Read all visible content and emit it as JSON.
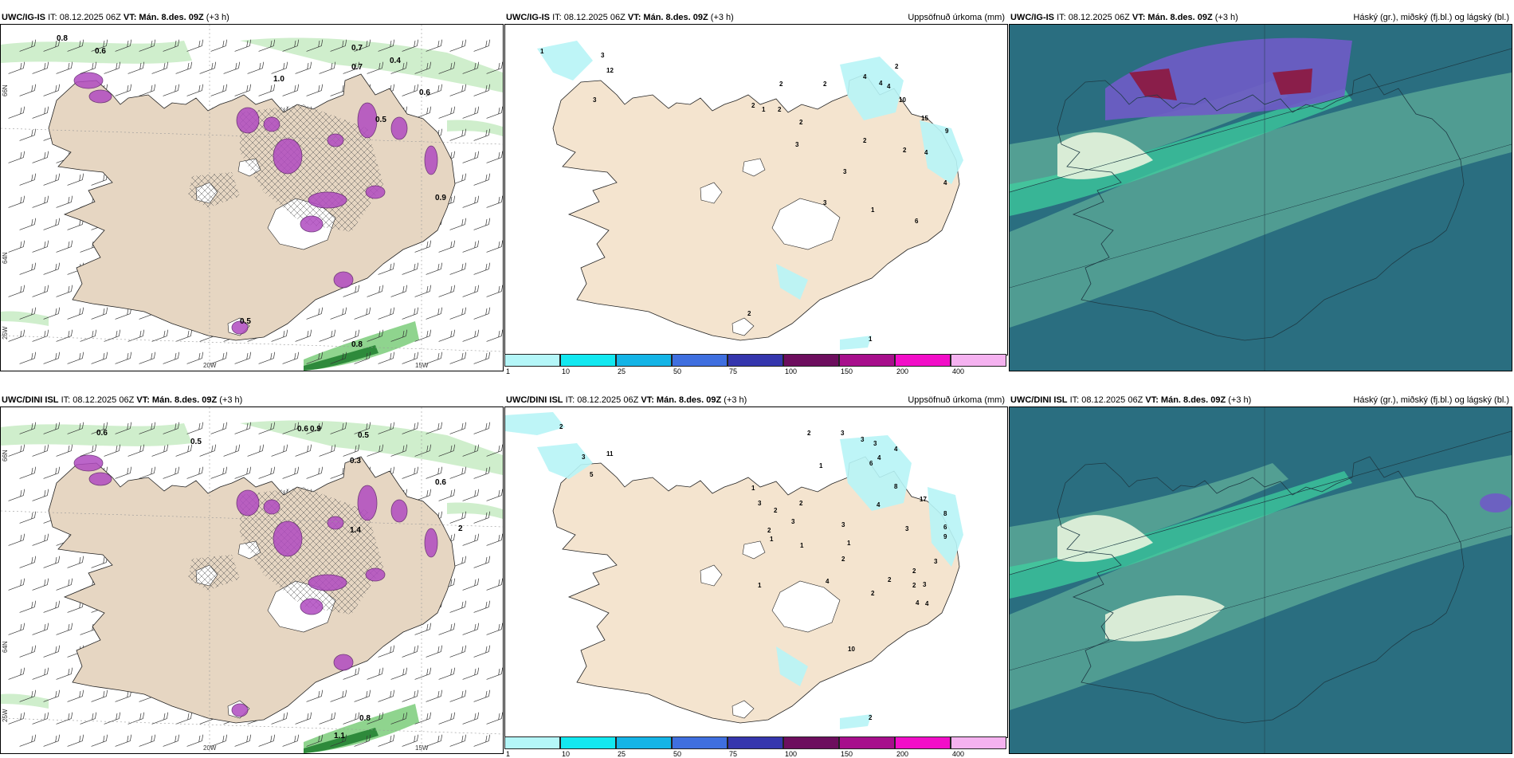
{
  "colors": {
    "land": "#f4e4cf",
    "land_panel1": "#e6d6c2",
    "sea": "#ffffff",
    "precip_light": "#b7f4f6",
    "purple": "#b04bc0",
    "green_light": "#cfeecc",
    "green_mid": "#8fd48e",
    "green_dark": "#2e8a3b",
    "cloud_bg": "#2a6e80",
    "cloud_mid": "#5aa896",
    "cloud_low": "#3fd3a0",
    "cloud_high": "#6f5bc7",
    "cloud_crimson": "#8a1e4a"
  },
  "rows": [
    {
      "model": "UWC/IG-IS",
      "init": "IT: 08.12.2025 06Z",
      "valid": "VT: Mán. 8.des. 09Z",
      "lead": "(+3 h)",
      "wind_labels": [
        {
          "text": "0.8",
          "x": 70,
          "y": 50
        },
        {
          "text": "0.6",
          "x": 118,
          "y": 66
        },
        {
          "text": "0.7",
          "x": 440,
          "y": 62
        },
        {
          "text": "0.4",
          "x": 488,
          "y": 78
        },
        {
          "text": "0.7",
          "x": 440,
          "y": 86
        },
        {
          "text": "0.6",
          "x": 525,
          "y": 118
        },
        {
          "text": "0.5",
          "x": 470,
          "y": 152
        },
        {
          "text": "0.9",
          "x": 545,
          "y": 250
        },
        {
          "text": "0.8",
          "x": 440,
          "y": 434
        },
        {
          "text": "1.0",
          "x": 342,
          "y": 101
        },
        {
          "text": "0.5",
          "x": 300,
          "y": 405
        }
      ],
      "lon_labels": [
        {
          "text": "20W",
          "x": 262
        },
        {
          "text": "15W",
          "x": 528
        }
      ],
      "lat_labels": [
        {
          "text": "66N",
          "y": 120
        },
        {
          "text": "64N",
          "y": 330
        },
        {
          "text": "25W",
          "y": 425
        }
      ],
      "precip_title": "Uppsöfnuð úrkoma (mm)",
      "precip_labels": [
        {
          "text": "1",
          "x": 680,
          "y": 63
        },
        {
          "text": "3",
          "x": 756,
          "y": 68
        },
        {
          "text": "12",
          "x": 763,
          "y": 87
        },
        {
          "text": "3",
          "x": 746,
          "y": 124
        },
        {
          "text": "2",
          "x": 945,
          "y": 131
        },
        {
          "text": "1",
          "x": 958,
          "y": 136
        },
        {
          "text": "2",
          "x": 978,
          "y": 136
        },
        {
          "text": "2",
          "x": 980,
          "y": 104
        },
        {
          "text": "2",
          "x": 1035,
          "y": 104
        },
        {
          "text": "2",
          "x": 1005,
          "y": 152
        },
        {
          "text": "2",
          "x": 1085,
          "y": 175
        },
        {
          "text": "3",
          "x": 1000,
          "y": 180
        },
        {
          "text": "3",
          "x": 1060,
          "y": 214
        },
        {
          "text": "4",
          "x": 1085,
          "y": 95
        },
        {
          "text": "4",
          "x": 1105,
          "y": 103
        },
        {
          "text": "4",
          "x": 1115,
          "y": 107
        },
        {
          "text": "2",
          "x": 1125,
          "y": 82
        },
        {
          "text": "10",
          "x": 1130,
          "y": 124
        },
        {
          "text": "15",
          "x": 1158,
          "y": 147
        },
        {
          "text": "2",
          "x": 1135,
          "y": 187
        },
        {
          "text": "9",
          "x": 1188,
          "y": 163
        },
        {
          "text": "4",
          "x": 1162,
          "y": 190
        },
        {
          "text": "1",
          "x": 1095,
          "y": 262
        },
        {
          "text": "6",
          "x": 1150,
          "y": 276
        },
        {
          "text": "4",
          "x": 1186,
          "y": 228
        },
        {
          "text": "3",
          "x": 1035,
          "y": 253
        },
        {
          "text": "1",
          "x": 1092,
          "y": 424
        },
        {
          "text": "2",
          "x": 940,
          "y": 392
        }
      ],
      "cloud_title": "Háský (gr.), miðský (fj.bl.) og lágský (bl.)"
    },
    {
      "model": "UWC/DINI ISL",
      "init": "IT: 08.12.2025 06Z",
      "valid": "VT: Mán. 8.des. 09Z",
      "lead": "(+3 h)",
      "wind_labels": [
        {
          "text": "0.6",
          "x": 120,
          "y": 545
        },
        {
          "text": "0.5",
          "x": 238,
          "y": 556
        },
        {
          "text": "0.6",
          "x": 372,
          "y": 540
        },
        {
          "text": "0.9",
          "x": 388,
          "y": 540
        },
        {
          "text": "0.5",
          "x": 448,
          "y": 548
        },
        {
          "text": "0.3",
          "x": 438,
          "y": 580
        },
        {
          "text": "0.6",
          "x": 545,
          "y": 607
        },
        {
          "text": "0.8",
          "x": 450,
          "y": 903
        },
        {
          "text": "1.1",
          "x": 418,
          "y": 925
        },
        {
          "text": "1.4",
          "x": 438,
          "y": 667
        },
        {
          "text": "2",
          "x": 574,
          "y": 665
        }
      ],
      "lon_labels": [
        {
          "text": "20W",
          "x": 262
        },
        {
          "text": "15W",
          "x": 528
        }
      ],
      "lat_labels": [
        {
          "text": "66N",
          "y": 578
        },
        {
          "text": "64N",
          "y": 818
        },
        {
          "text": "25W",
          "y": 905
        }
      ],
      "precip_title": "Uppsöfnuð úrkoma (mm)",
      "precip_labels": [
        {
          "text": "2",
          "x": 704,
          "y": 534
        },
        {
          "text": "3",
          "x": 732,
          "y": 572
        },
        {
          "text": "11",
          "x": 763,
          "y": 568
        },
        {
          "text": "5",
          "x": 742,
          "y": 594
        },
        {
          "text": "2",
          "x": 1015,
          "y": 542
        },
        {
          "text": "3",
          "x": 1057,
          "y": 542
        },
        {
          "text": "1",
          "x": 1030,
          "y": 583
        },
        {
          "text": "3",
          "x": 1082,
          "y": 550
        },
        {
          "text": "1",
          "x": 945,
          "y": 611
        },
        {
          "text": "3",
          "x": 953,
          "y": 630
        },
        {
          "text": "2",
          "x": 973,
          "y": 639
        },
        {
          "text": "2",
          "x": 1005,
          "y": 630
        },
        {
          "text": "3",
          "x": 995,
          "y": 653
        },
        {
          "text": "2",
          "x": 965,
          "y": 664
        },
        {
          "text": "1",
          "x": 968,
          "y": 675
        },
        {
          "text": "1",
          "x": 1006,
          "y": 683
        },
        {
          "text": "3",
          "x": 1058,
          "y": 657
        },
        {
          "text": "1",
          "x": 1065,
          "y": 680
        },
        {
          "text": "2",
          "x": 1058,
          "y": 700
        },
        {
          "text": "3",
          "x": 1098,
          "y": 555
        },
        {
          "text": "4",
          "x": 1103,
          "y": 573
        },
        {
          "text": "6",
          "x": 1093,
          "y": 580
        },
        {
          "text": "4",
          "x": 1124,
          "y": 562
        },
        {
          "text": "8",
          "x": 1124,
          "y": 609
        },
        {
          "text": "17",
          "x": 1156,
          "y": 625
        },
        {
          "text": "4",
          "x": 1102,
          "y": 632
        },
        {
          "text": "3",
          "x": 1138,
          "y": 662
        },
        {
          "text": "8",
          "x": 1186,
          "y": 643
        },
        {
          "text": "6",
          "x": 1186,
          "y": 660
        },
        {
          "text": "9",
          "x": 1186,
          "y": 672
        },
        {
          "text": "3",
          "x": 1174,
          "y": 703
        },
        {
          "text": "2",
          "x": 1147,
          "y": 715
        },
        {
          "text": "2",
          "x": 1147,
          "y": 733
        },
        {
          "text": "3",
          "x": 1160,
          "y": 732
        },
        {
          "text": "2",
          "x": 1116,
          "y": 726
        },
        {
          "text": "2",
          "x": 1095,
          "y": 743
        },
        {
          "text": "4",
          "x": 1151,
          "y": 755
        },
        {
          "text": "4",
          "x": 1163,
          "y": 756
        },
        {
          "text": "4",
          "x": 1038,
          "y": 728
        },
        {
          "text": "1",
          "x": 953,
          "y": 733
        },
        {
          "text": "10",
          "x": 1066,
          "y": 813
        },
        {
          "text": "2",
          "x": 1092,
          "y": 899
        }
      ],
      "cloud_title": "Háský (gr.), miðský (fj.bl.) og lágský (bl.)"
    }
  ],
  "colorbar": {
    "colors": [
      "#b4f6f8",
      "#13e8f0",
      "#14b4e6",
      "#3f6fdf",
      "#3536ad",
      "#6d0e5e",
      "#a70f8c",
      "#f20ec8",
      "#f5b2f0"
    ],
    "ticks": [
      "1",
      "10",
      "25",
      "50",
      "75",
      "100",
      "150",
      "200",
      "400"
    ]
  }
}
